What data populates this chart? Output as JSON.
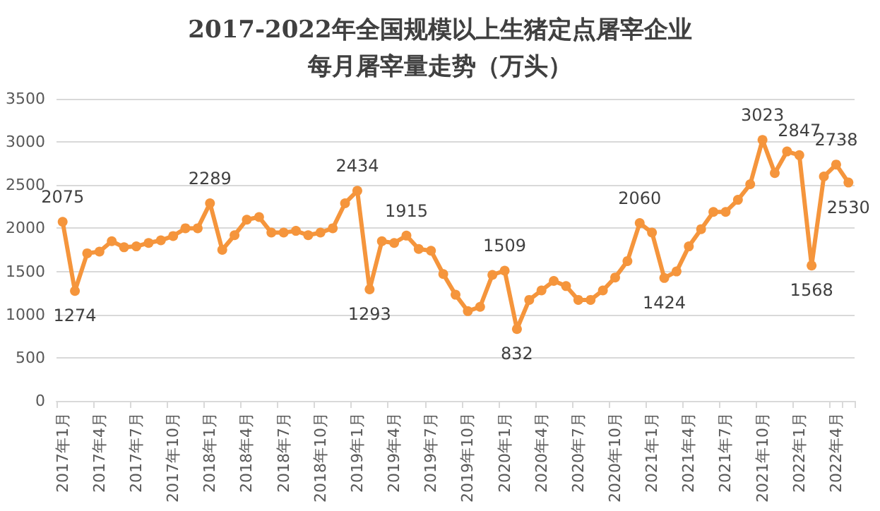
{
  "chart_data": {
    "type": "line",
    "title": "2017-2022年全国规模以上生猪定点屠宰企业",
    "subtitle": "每月屠宰量走势（万头）",
    "categories": [
      "2017年1月",
      null,
      null,
      "2017年4月",
      null,
      null,
      "2017年7月",
      null,
      null,
      "2017年10月",
      null,
      null,
      "2018年1月",
      null,
      null,
      "2018年4月",
      null,
      null,
      "2018年7月",
      null,
      null,
      "2018年10月",
      null,
      null,
      "2019年1月",
      null,
      null,
      "2019年4月",
      null,
      null,
      "2019年7月",
      null,
      null,
      "2019年10月",
      null,
      null,
      "2020年1月",
      null,
      null,
      "2020年4月",
      null,
      null,
      "2020年7月",
      null,
      null,
      "2020年10月",
      null,
      null,
      "2021年1月",
      null,
      null,
      "2021年4月",
      null,
      null,
      "2021年7月",
      null,
      null,
      "2021年10月",
      null,
      null,
      "2022年1月",
      null,
      null,
      "2022年4月",
      null
    ],
    "series": [
      {
        "color": "#f5953c",
        "values": [
          2075,
          1274,
          1710,
          1730,
          1850,
          1780,
          1790,
          1830,
          1860,
          1910,
          2000,
          2000,
          2289,
          1750,
          1920,
          2100,
          2130,
          1950,
          1950,
          1970,
          1920,
          1950,
          2000,
          2290,
          2434,
          1293,
          1850,
          1830,
          1915,
          1760,
          1740,
          1470,
          1230,
          1040,
          1090,
          1460,
          1509,
          832,
          1170,
          1280,
          1390,
          1330,
          1170,
          1170,
          1280,
          1430,
          1620,
          2060,
          1950,
          1424,
          1500,
          1790,
          1990,
          2190,
          2190,
          2330,
          2510,
          3023,
          2640,
          2890,
          2847,
          1568,
          2600,
          2738,
          2530
        ],
        "value_labels": [
          "2075",
          "1274",
          null,
          null,
          null,
          null,
          null,
          null,
          null,
          null,
          null,
          null,
          "2289",
          null,
          null,
          null,
          null,
          null,
          null,
          null,
          null,
          null,
          null,
          null,
          "2434",
          "1293",
          null,
          null,
          "1915",
          null,
          null,
          null,
          null,
          null,
          null,
          null,
          "1509",
          "832",
          null,
          null,
          null,
          null,
          null,
          null,
          null,
          null,
          null,
          "2060",
          null,
          "1424",
          null,
          null,
          null,
          null,
          null,
          null,
          null,
          "3023",
          null,
          null,
          "2847",
          "1568",
          null,
          "2738",
          "2530"
        ]
      }
    ],
    "ylim": [
      0,
      3500
    ],
    "yticks": [
      0,
      500,
      1000,
      1500,
      2000,
      2500,
      3000,
      3500
    ],
    "grid": "y",
    "marker": "circle",
    "line_style": "solid"
  }
}
